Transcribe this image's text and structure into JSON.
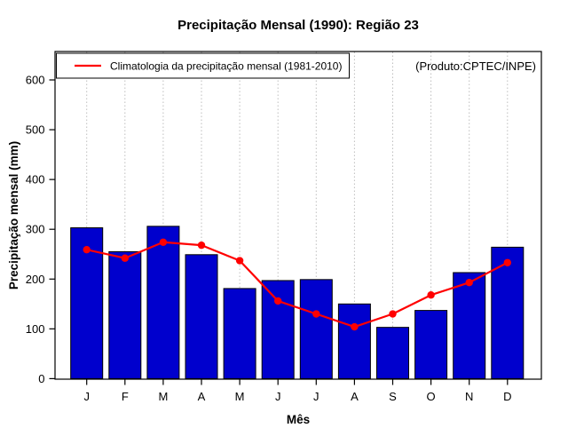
{
  "title": "Precipitação Mensal (1990): Região 23",
  "watermark": "(Produto:CPTEC/INPE)",
  "legend": {
    "label": "Climatologia da precipitação mensal (1981-2010)"
  },
  "chart_data": {
    "type": "bar",
    "title": "Precipitação Mensal (1990): Região 23",
    "categories": [
      "J",
      "F",
      "M",
      "A",
      "M",
      "J",
      "J",
      "A",
      "S",
      "O",
      "N",
      "D"
    ],
    "series": [
      {
        "name": "Precipitação mensal 1990",
        "type": "bar",
        "color": "#0000CD",
        "border_color": "#000000",
        "values": [
          303,
          255,
          306,
          249,
          181,
          197,
          199,
          150,
          103,
          137,
          213,
          264
        ]
      },
      {
        "name": "Climatologia da precipitação mensal (1981-2010)",
        "type": "line",
        "color": "#FF0000",
        "marker": "filled-circle",
        "values": [
          259,
          242,
          274,
          268,
          237,
          156,
          130,
          104,
          130,
          168,
          193,
          233
        ]
      }
    ],
    "xlabel": "Mês",
    "ylabel": "Precipitação mensal (mm)",
    "ylim": [
      0,
      620
    ],
    "yticks": [
      0,
      100,
      200,
      300,
      400,
      500,
      600
    ],
    "grid": "vertical-dotted-at-categories",
    "grid_color": "#BEBEBE",
    "legend_position": "top-left",
    "watermark_color": "#8C8C8C"
  }
}
